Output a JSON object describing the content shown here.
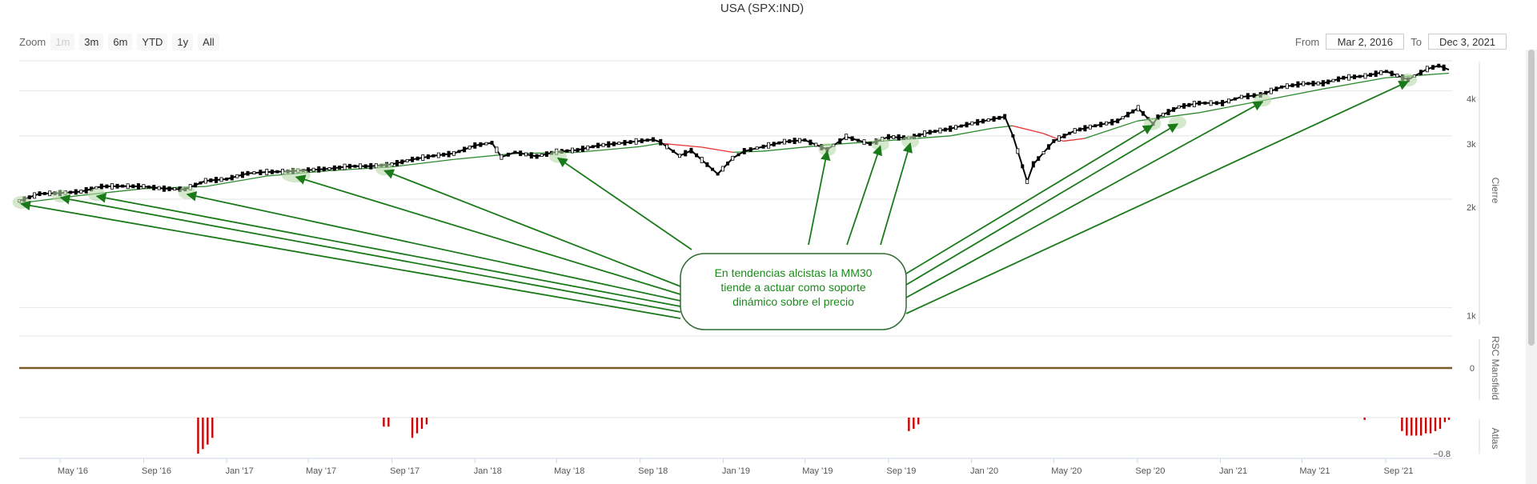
{
  "title": "USA (SPX:IND)",
  "zoom": {
    "label": "Zoom",
    "buttons": [
      {
        "label": "1m",
        "disabled": true
      },
      {
        "label": "3m",
        "disabled": false
      },
      {
        "label": "6m",
        "disabled": false
      },
      {
        "label": "YTD",
        "disabled": false
      },
      {
        "label": "1y",
        "disabled": false
      },
      {
        "label": "All",
        "disabled": false
      }
    ]
  },
  "range": {
    "from_label": "From",
    "from_value": "Mar 2, 2016",
    "to_label": "To",
    "to_value": "Dec 3, 2021"
  },
  "annotation": {
    "lines": [
      "En tendencias alcistas la MM30",
      "tiende a actuar como soporte",
      "dinámico sobre el precio"
    ],
    "color": "#1a8a1a"
  },
  "colors": {
    "price": "#000000",
    "ma_up": "#2e8b2e",
    "ma_down": "#e53030",
    "rsc": "#7a5a2a",
    "atlas": "#cc0000",
    "arrow": "#1a7a1a"
  },
  "chart_data": [
    {
      "type": "line",
      "name": "price-panel",
      "x_tick_labels": [
        "May '16",
        "Sep '16",
        "Jan '17",
        "May '17",
        "Sep '17",
        "Jan '18",
        "May '18",
        "Sep '18",
        "Jan '19",
        "May '19",
        "Sep '19",
        "Jan '20",
        "May '20",
        "Sep '20",
        "Jan '21",
        "May '21",
        "Sep '21"
      ],
      "x_ticks": [
        "2016-05-01",
        "2016-09-01",
        "2017-01-01",
        "2017-05-01",
        "2017-09-01",
        "2018-01-01",
        "2018-05-01",
        "2018-09-01",
        "2019-01-01",
        "2019-05-01",
        "2019-09-01",
        "2020-01-01",
        "2020-05-01",
        "2020-09-01",
        "2021-01-01",
        "2021-05-01",
        "2021-09-01"
      ],
      "xlim": [
        "2016-03-02",
        "2021-12-03"
      ],
      "y_scale": "log",
      "ylabel": "Cierre",
      "y_ticks": [
        1000,
        2000,
        3000,
        4000
      ],
      "y_tick_labels": [
        "1k",
        "2k",
        "3k",
        "4k"
      ],
      "ylim": [
        900,
        4800
      ],
      "series": [
        {
          "x": [
            "2016-03-02",
            "2016-04-01",
            "2016-05-01",
            "2016-06-01",
            "2016-07-01",
            "2016-08-01",
            "2016-09-01",
            "2016-10-01",
            "2016-11-01",
            "2016-12-01",
            "2017-01-01",
            "2017-02-01",
            "2017-03-01",
            "2017-04-01",
            "2017-05-01",
            "2017-06-01",
            "2017-07-01",
            "2017-08-01",
            "2017-09-01",
            "2017-10-01",
            "2017-11-01",
            "2017-12-01",
            "2018-01-01",
            "2018-01-26",
            "2018-02-09",
            "2018-03-01",
            "2018-04-02",
            "2018-05-01",
            "2018-06-01",
            "2018-07-01",
            "2018-08-01",
            "2018-09-20",
            "2018-10-01",
            "2018-10-29",
            "2018-11-15",
            "2018-12-24",
            "2019-01-15",
            "2019-02-01",
            "2019-03-01",
            "2019-04-01",
            "2019-05-01",
            "2019-06-03",
            "2019-07-01",
            "2019-08-05",
            "2019-09-01",
            "2019-10-01",
            "2019-11-01",
            "2019-12-01",
            "2020-01-02",
            "2020-02-19",
            "2020-03-02",
            "2020-03-23",
            "2020-04-01",
            "2020-05-01",
            "2020-06-01",
            "2020-07-01",
            "2020-08-03",
            "2020-09-02",
            "2020-09-24",
            "2020-10-01",
            "2020-11-01",
            "2020-12-01",
            "2021-01-04",
            "2021-02-01",
            "2021-03-01",
            "2021-04-01",
            "2021-05-03",
            "2021-06-01",
            "2021-07-01",
            "2021-08-02",
            "2021-09-02",
            "2021-10-04",
            "2021-11-01",
            "2021-11-18",
            "2021-12-03"
          ],
          "y": [
            1978,
            2072,
            2080,
            2100,
            2170,
            2175,
            2170,
            2140,
            2130,
            2250,
            2275,
            2360,
            2380,
            2390,
            2410,
            2430,
            2470,
            2470,
            2500,
            2580,
            2640,
            2680,
            2820,
            2870,
            2620,
            2700,
            2630,
            2710,
            2740,
            2820,
            2860,
            2930,
            2880,
            2640,
            2730,
            2350,
            2600,
            2720,
            2800,
            2890,
            2920,
            2750,
            2980,
            2850,
            2980,
            2960,
            3070,
            3140,
            3250,
            3390,
            3000,
            2240,
            2500,
            2900,
            3100,
            3200,
            3300,
            3580,
            3240,
            3380,
            3610,
            3700,
            3700,
            3850,
            3900,
            4100,
            4190,
            4200,
            4350,
            4400,
            4530,
            4300,
            4600,
            4700,
            4580
          ],
          "name": "Cierre"
        },
        {
          "x": [
            "2016-03-02",
            "2016-06-01",
            "2016-09-01",
            "2016-12-01",
            "2017-03-01",
            "2017-06-01",
            "2017-09-01",
            "2017-12-01",
            "2018-03-01",
            "2018-06-01",
            "2018-09-01",
            "2018-10-01",
            "2018-12-01",
            "2019-01-15",
            "2019-03-01",
            "2019-06-01",
            "2019-09-01",
            "2019-12-01",
            "2020-02-01",
            "2020-03-01",
            "2020-04-15",
            "2020-05-15",
            "2020-06-15",
            "2020-09-01",
            "2020-12-01",
            "2021-03-01",
            "2021-06-01",
            "2021-09-01",
            "2021-12-03"
          ],
          "y": [
            1950,
            2050,
            2140,
            2170,
            2320,
            2400,
            2460,
            2580,
            2680,
            2700,
            2800,
            2860,
            2790,
            2700,
            2720,
            2830,
            2910,
            3000,
            3150,
            3200,
            3050,
            2900,
            2950,
            3300,
            3480,
            3750,
            4050,
            4350,
            4480
          ],
          "name": "MM30"
        }
      ]
    },
    {
      "type": "line",
      "name": "rsc-panel",
      "ylabel": "RSC Mansfield",
      "y_ticks": [
        0
      ],
      "y_tick_labels": [
        "0"
      ],
      "ylim": [
        -1,
        1
      ],
      "series": [
        {
          "x": [
            "2016-03-02",
            "2021-12-03"
          ],
          "y": [
            0,
            0
          ]
        }
      ]
    },
    {
      "type": "bar",
      "name": "atlas-panel",
      "ylabel": "Atlas",
      "y_ticks": [
        -0.8
      ],
      "y_tick_labels": [
        "−0.8"
      ],
      "ylim": [
        -1,
        0
      ],
      "series": [
        {
          "x": [
            "2016-11-20",
            "2016-11-27",
            "2016-12-04",
            "2016-12-11",
            "2017-08-20",
            "2017-08-27",
            "2017-10-01",
            "2017-10-08",
            "2017-10-15",
            "2017-10-22",
            "2019-10-01",
            "2019-10-08",
            "2019-10-15",
            "2021-08-01",
            "2021-09-25",
            "2021-10-02",
            "2021-10-09",
            "2021-10-16",
            "2021-10-23",
            "2021-10-30",
            "2021-11-06",
            "2021-11-13",
            "2021-11-20",
            "2021-11-27",
            "2021-12-03"
          ],
          "y": [
            -0.8,
            -0.7,
            -0.6,
            -0.45,
            -0.2,
            -0.2,
            -0.45,
            -0.35,
            -0.25,
            -0.15,
            -0.3,
            -0.25,
            -0.15,
            -0.05,
            -0.3,
            -0.4,
            -0.4,
            -0.4,
            -0.4,
            -0.35,
            -0.35,
            -0.3,
            -0.25,
            -0.1,
            -0.05
          ]
        }
      ]
    }
  ],
  "annotation_targets": [
    {
      "date": "2016-03-05",
      "value": 1960
    },
    {
      "date": "2016-05-02",
      "value": 2040
    },
    {
      "date": "2016-06-24",
      "value": 2060
    },
    {
      "date": "2016-11-04",
      "value": 2085
    },
    {
      "date": "2017-04-13",
      "value": 2330
    },
    {
      "date": "2017-08-21",
      "value": 2425
    },
    {
      "date": "2018-05-03",
      "value": 2630
    },
    {
      "date": "2019-06-03",
      "value": 2750
    },
    {
      "date": "2019-08-20",
      "value": 2840
    },
    {
      "date": "2019-10-03",
      "value": 2890
    },
    {
      "date": "2020-09-23",
      "value": 3240
    },
    {
      "date": "2020-10-30",
      "value": 3270
    },
    {
      "date": "2021-03-04",
      "value": 3770
    },
    {
      "date": "2021-10-04",
      "value": 4290
    }
  ]
}
